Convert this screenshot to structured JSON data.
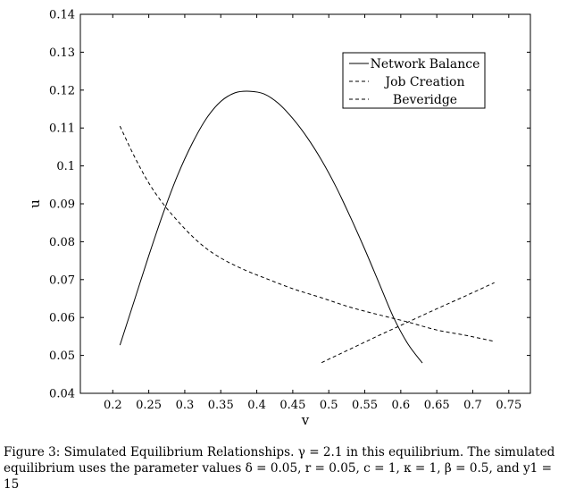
{
  "chart_data": {
    "type": "line",
    "title": "",
    "xlabel": "v",
    "ylabel": "u",
    "xlim": [
      0.155,
      0.78
    ],
    "ylim": [
      0.04,
      0.14
    ],
    "xticks": [
      0.2,
      0.25,
      0.3,
      0.35,
      0.4,
      0.45,
      0.5,
      0.55,
      0.6,
      0.65,
      0.7,
      0.75
    ],
    "xtick_labels": [
      "0.2",
      "0.25",
      "0.3",
      "0.35",
      "0.4",
      "0.45",
      "0.5",
      "0.55",
      "0.6",
      "0.65",
      "0.7",
      "0.75"
    ],
    "yticks": [
      0.04,
      0.05,
      0.06,
      0.07,
      0.08,
      0.09,
      0.1,
      0.11,
      0.12,
      0.13,
      0.14
    ],
    "ytick_labels": [
      "0.04",
      "0.05",
      "0.06",
      "0.07",
      "0.08",
      "0.09",
      "0.1",
      "0.11",
      "0.12",
      "0.13",
      "0.14"
    ],
    "grid": false,
    "legend_position": "top-right",
    "series": [
      {
        "name": "Network Balance",
        "style": "solid",
        "x": [
          0.21,
          0.23,
          0.25,
          0.27,
          0.29,
          0.31,
          0.33,
          0.35,
          0.37,
          0.39,
          0.41,
          0.43,
          0.45,
          0.47,
          0.49,
          0.51,
          0.53,
          0.55,
          0.57,
          0.59,
          0.61,
          0.63
        ],
        "y": [
          0.0527,
          0.0645,
          0.0763,
          0.0875,
          0.0975,
          0.1058,
          0.1125,
          0.117,
          0.1193,
          0.1197,
          0.119,
          0.1165,
          0.1125,
          0.1075,
          0.1015,
          0.0945,
          0.0865,
          0.078,
          0.069,
          0.06,
          0.053,
          0.048
        ]
      },
      {
        "name": "Job Creation",
        "style": "dashed",
        "x": [
          0.49,
          0.53,
          0.57,
          0.61,
          0.65,
          0.69,
          0.73
        ],
        "y": [
          0.0481,
          0.0517,
          0.0553,
          0.0588,
          0.0623,
          0.0657,
          0.0692
        ]
      },
      {
        "name": "Beveridge",
        "style": "dashed",
        "x": [
          0.21,
          0.23,
          0.25,
          0.27,
          0.29,
          0.31,
          0.33,
          0.35,
          0.37,
          0.39,
          0.41,
          0.45,
          0.49,
          0.53,
          0.57,
          0.61,
          0.65,
          0.69,
          0.73
        ],
        "y": [
          0.1105,
          0.1025,
          0.0955,
          0.09,
          0.0855,
          0.0815,
          0.0782,
          0.0757,
          0.0737,
          0.072,
          0.0705,
          0.0676,
          0.0652,
          0.0627,
          0.0607,
          0.0588,
          0.0567,
          0.0553,
          0.0537
        ]
      }
    ]
  },
  "caption": {
    "lines": [
      "Figure 3: Simulated Equilibrium Relationships. γ = 2.1 in this equilibrium. The simulated",
      "equilibrium uses the parameter values δ = 0.05, r = 0.05, c = 1, κ = 1, β = 0.5,  and y1 =",
      "15"
    ]
  },
  "style": {
    "line_color": "#000000",
    "frame_color": "#000000"
  }
}
